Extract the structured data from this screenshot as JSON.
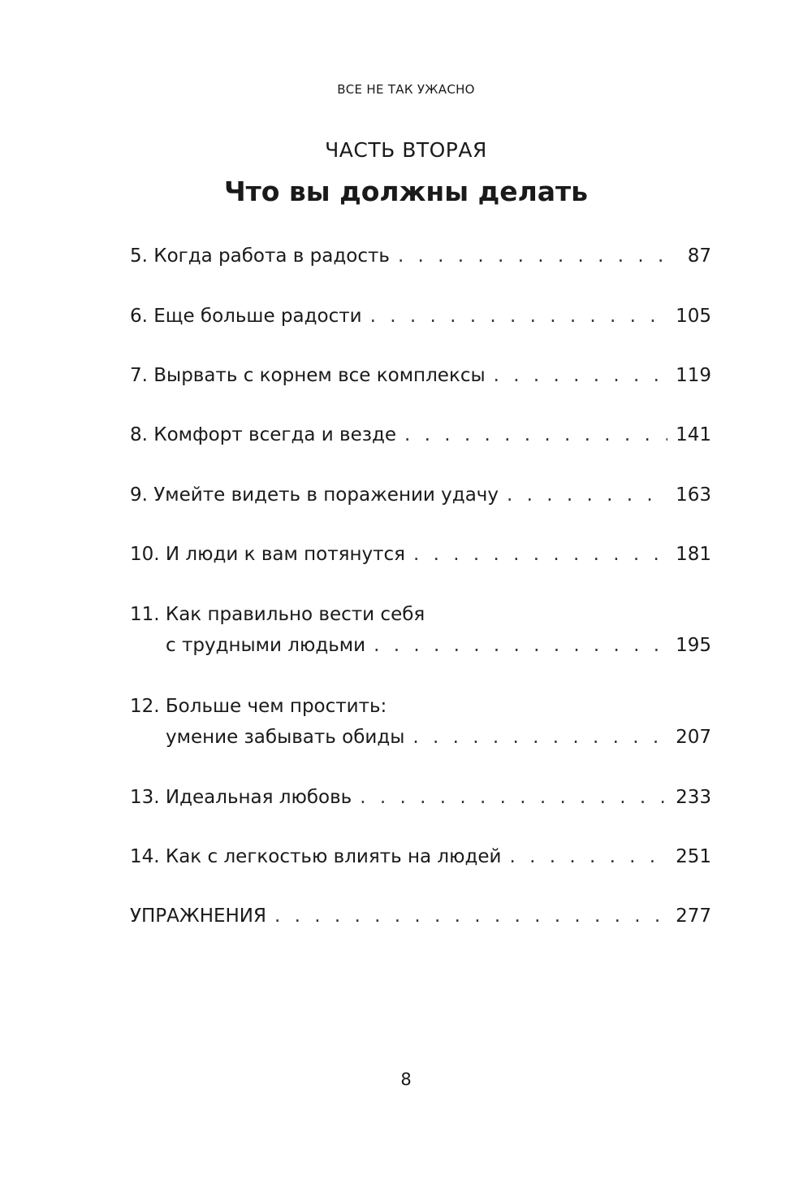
{
  "running_head": "ВСЕ НЕ ТАК УЖАСНО",
  "part_label": "ЧАСТЬ ВТОРАЯ",
  "part_title": "Что вы должны делать",
  "entries": [
    {
      "title": "5. Когда работа в радость",
      "page": "87"
    },
    {
      "title": "6. Еще больше радости",
      "page": "105"
    },
    {
      "title": "7. Вырвать с корнем все комплексы",
      "page": "119"
    },
    {
      "title": "8. Комфорт всегда и везде",
      "page": "141"
    },
    {
      "title": "9. Умейте видеть в поражении удачу",
      "page": "163"
    },
    {
      "title": "10. И люди к вам потянутся",
      "page": "181"
    },
    {
      "title": "11. Как правильно вести себя",
      "title2": "с трудными людьми",
      "page": "195"
    },
    {
      "title": "12. Больше чем простить:",
      "title2": "умение забывать обиды",
      "page": "207"
    },
    {
      "title": "13. Идеальная любовь",
      "page": "233"
    },
    {
      "title": "14. Как с легкостью влиять на людей",
      "page": "251"
    },
    {
      "title": "УПРАЖНЕНИЯ",
      "page": "277"
    }
  ],
  "folio": "8"
}
